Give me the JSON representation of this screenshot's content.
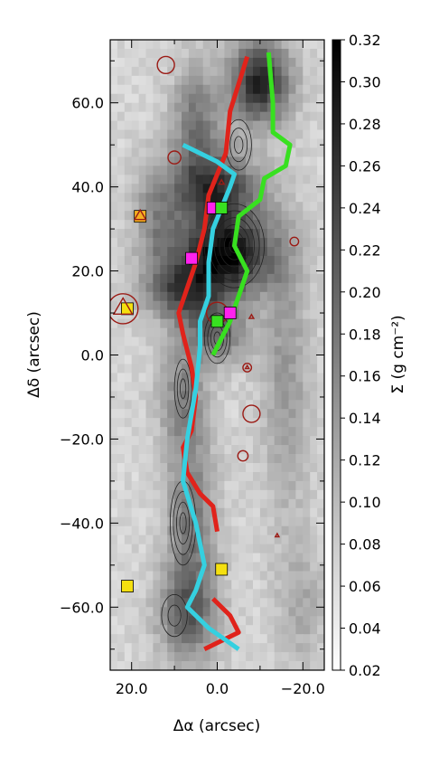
{
  "chart_data": {
    "type": "heatmap",
    "title": "",
    "xlabel": "Δα (arcsec)",
    "ylabel": "Δδ (arcsec)",
    "colorbar_label": "Σ (g cm⁻²)",
    "xlim": [
      25,
      -25
    ],
    "ylim": [
      -75,
      75
    ],
    "x_ticks": [
      20,
      0,
      -20
    ],
    "x_tick_labels": [
      "20.0",
      "0.0",
      "−20.0"
    ],
    "y_ticks": [
      60,
      40,
      20,
      0,
      -20,
      -40,
      -60
    ],
    "y_tick_labels": [
      "60.0",
      "40.0",
      "20.0",
      "0.0",
      "−20.0",
      "−40.0",
      "−60.0"
    ],
    "colorbar_range": [
      0.02,
      0.32
    ],
    "colorbar_ticks": [
      0.02,
      0.04,
      0.06,
      0.08,
      0.1,
      0.12,
      0.14,
      0.16,
      0.18,
      0.2,
      0.22,
      0.24,
      0.26,
      0.28,
      0.3,
      0.32
    ],
    "colorbar_tick_labels": [
      "0.02",
      "0.04",
      "0.06",
      "0.08",
      "0.10",
      "0.12",
      "0.14",
      "0.16",
      "0.18",
      "0.20",
      "0.22",
      "0.24",
      "0.26",
      "0.28",
      "0.30",
      "0.32"
    ],
    "colormap": "white-to-black",
    "density_blobs": [
      {
        "x": -10,
        "y": 65,
        "sx": 5,
        "sy": 7,
        "v": 0.26
      },
      {
        "x": 5,
        "y": 55,
        "sx": 4,
        "sy": 10,
        "v": 0.16
      },
      {
        "x": 0,
        "y": 40,
        "sx": 7,
        "sy": 6,
        "v": 0.22
      },
      {
        "x": -2,
        "y": 24,
        "sx": 8,
        "sy": 7,
        "v": 0.29
      },
      {
        "x": 8,
        "y": 15,
        "sx": 6,
        "sy": 5,
        "v": 0.19
      },
      {
        "x": 0,
        "y": 5,
        "sx": 5,
        "sy": 5,
        "v": 0.17
      },
      {
        "x": 8,
        "y": -10,
        "sx": 4,
        "sy": 10,
        "v": 0.14
      },
      {
        "x": 6,
        "y": -40,
        "sx": 4,
        "sy": 14,
        "v": 0.16
      },
      {
        "x": 7,
        "y": -62,
        "sx": 5,
        "sy": 8,
        "v": 0.17
      },
      {
        "x": -16,
        "y": -5,
        "sx": 4,
        "sy": 25,
        "v": 0.12
      },
      {
        "x": 14,
        "y": 32,
        "sx": 4,
        "sy": 10,
        "v": 0.13
      },
      {
        "x": -20,
        "y": -60,
        "sx": 4,
        "sy": 10,
        "v": 0.1
      }
    ],
    "filament_paths": [
      {
        "color": "#e0231b",
        "points": [
          [
            -7,
            71
          ],
          [
            -3,
            58
          ],
          [
            -2,
            48
          ],
          [
            2,
            38
          ],
          [
            3,
            30
          ],
          [
            5,
            22
          ],
          [
            7,
            16
          ],
          [
            9,
            10
          ],
          [
            8,
            5
          ],
          [
            6,
            -3
          ],
          [
            5,
            -10
          ],
          [
            6,
            -18
          ],
          [
            8,
            -22
          ],
          [
            7,
            -28
          ],
          [
            4,
            -33
          ],
          [
            1,
            -36
          ],
          [
            0,
            -42
          ]
        ]
      },
      {
        "color": "#e0231b",
        "points": [
          [
            1,
            -58
          ],
          [
            -3,
            -62
          ],
          [
            -5,
            -66
          ],
          [
            3,
            -70
          ]
        ]
      },
      {
        "color": "#35d0e0",
        "points": [
          [
            8,
            50
          ],
          [
            0,
            46
          ],
          [
            -4,
            43
          ],
          [
            -3,
            40
          ],
          [
            1,
            30
          ],
          [
            2,
            22
          ],
          [
            2,
            14
          ],
          [
            4,
            8
          ],
          [
            4,
            2
          ],
          [
            5,
            -8
          ],
          [
            7,
            -20
          ],
          [
            8,
            -30
          ],
          [
            5,
            -40
          ],
          [
            3,
            -50
          ],
          [
            5,
            -56
          ],
          [
            7,
            -60
          ],
          [
            2,
            -65
          ],
          [
            -5,
            -70
          ]
        ]
      },
      {
        "color": "#38e020",
        "points": [
          [
            -12,
            72
          ],
          [
            -13,
            60
          ],
          [
            -13,
            53
          ],
          [
            -17,
            50
          ],
          [
            -16,
            45
          ],
          [
            -11,
            42
          ],
          [
            -10,
            37
          ],
          [
            -5,
            33
          ],
          [
            -4,
            26
          ],
          [
            -7,
            20
          ],
          [
            -5,
            14
          ],
          [
            -3,
            8
          ],
          [
            1,
            0
          ]
        ]
      }
    ],
    "contours": [
      {
        "x": -4,
        "y": 26,
        "rx": 7,
        "ry": 10,
        "levels": 6
      },
      {
        "x": 0,
        "y": 4,
        "rx": 3,
        "ry": 6,
        "levels": 4
      },
      {
        "x": -5,
        "y": 50,
        "rx": 3,
        "ry": 6,
        "levels": 3
      },
      {
        "x": 8,
        "y": -8,
        "rx": 2,
        "ry": 7,
        "levels": 3
      },
      {
        "x": 8,
        "y": -40,
        "rx": 3,
        "ry": 10,
        "levels": 4
      },
      {
        "x": 10,
        "y": -62,
        "rx": 3,
        "ry": 5,
        "levels": 2
      }
    ],
    "squares": [
      {
        "x": 18,
        "y": 33,
        "color": "#f5b021"
      },
      {
        "x": 21,
        "y": 11,
        "color": "#f5e010"
      },
      {
        "x": 6,
        "y": 23,
        "color": "#ff22ee"
      },
      {
        "x": 1,
        "y": 35,
        "color": "#ff22ee"
      },
      {
        "x": -1,
        "y": 35,
        "color": "#38e020"
      },
      {
        "x": -3,
        "y": 10,
        "color": "#ff22ee"
      },
      {
        "x": 0,
        "y": 8,
        "color": "#38e020"
      },
      {
        "x": -1,
        "y": -51,
        "color": "#f5e010"
      },
      {
        "x": 21,
        "y": -55,
        "color": "#f5e010"
      }
    ],
    "circles": [
      {
        "x": 12,
        "y": 69,
        "r": 2
      },
      {
        "x": 10,
        "y": 47,
        "r": 1.5
      },
      {
        "x": 22,
        "y": 11,
        "r": 3.5
      },
      {
        "x": -18,
        "y": 27,
        "r": 1
      },
      {
        "x": -7,
        "y": -3,
        "r": 1
      },
      {
        "x": -8,
        "y": -14,
        "r": 2
      },
      {
        "x": -6,
        "y": -24,
        "r": 1.2
      },
      {
        "x": 0,
        "y": 10,
        "r": 2.5
      }
    ],
    "triangles": [
      {
        "x": 18,
        "y": 33,
        "s": 1.5
      },
      {
        "x": 22,
        "y": 11,
        "s": 2.5
      },
      {
        "x": -1,
        "y": 41,
        "s": 0.7
      },
      {
        "x": -8,
        "y": 9,
        "s": 0.6
      },
      {
        "x": -7,
        "y": -3,
        "s": 0.5
      },
      {
        "x": -14,
        "y": -43,
        "s": 0.5
      }
    ]
  }
}
